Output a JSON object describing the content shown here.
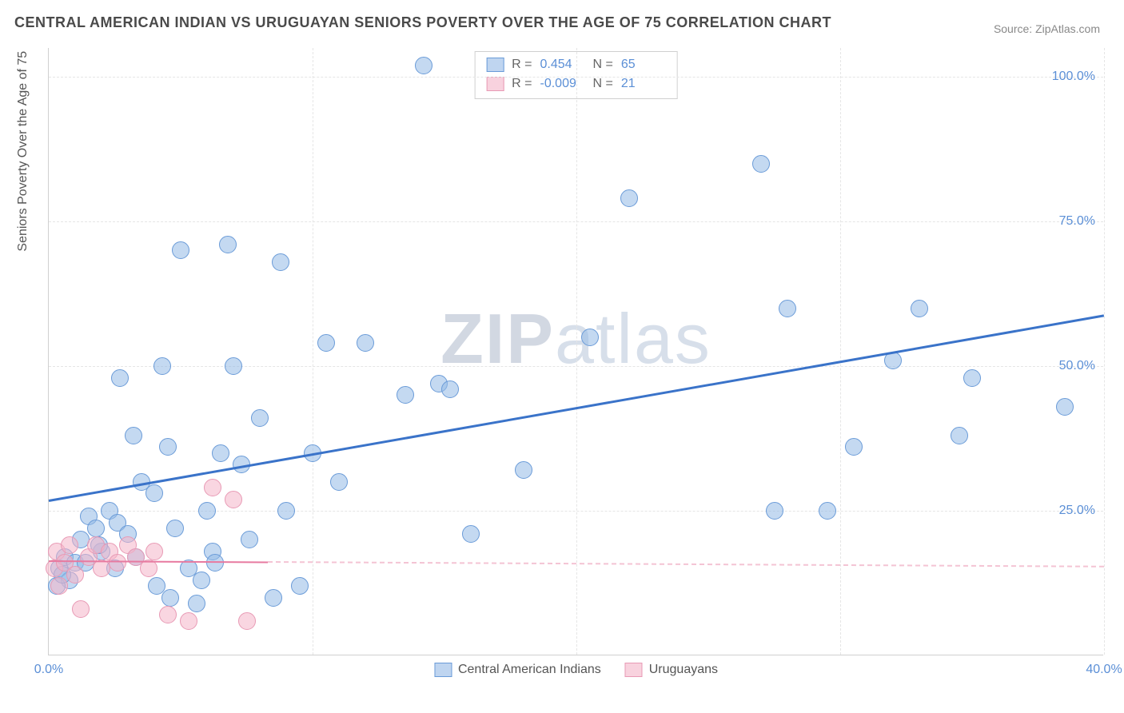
{
  "title": "CENTRAL AMERICAN INDIAN VS URUGUAYAN SENIORS POVERTY OVER THE AGE OF 75 CORRELATION CHART",
  "source_label": "Source: ZipAtlas.com",
  "watermark_zip": "ZIP",
  "watermark_atlas": "atlas",
  "y_axis_title": "Seniors Poverty Over the Age of 75",
  "legend_top": {
    "rows": [
      {
        "swatch": "blue",
        "r_label": "R =",
        "r_value": "0.454",
        "n_label": "N =",
        "n_value": "65"
      },
      {
        "swatch": "pink",
        "r_label": "R =",
        "r_value": "-0.009",
        "n_label": "N =",
        "n_value": "21"
      }
    ]
  },
  "legend_bottom": [
    {
      "swatch": "blue",
      "label": "Central American Indians"
    },
    {
      "swatch": "pink",
      "label": "Uruguayans"
    }
  ],
  "chart": {
    "type": "scatter",
    "xlim": [
      0,
      40
    ],
    "ylim": [
      0,
      105
    ],
    "x_ticks": [
      0,
      10,
      20,
      30,
      40
    ],
    "x_tick_labels": [
      "0.0%",
      "",
      "",
      "",
      "40.0%"
    ],
    "y_ticks": [
      25,
      50,
      75,
      100
    ],
    "y_tick_labels": [
      "25.0%",
      "50.0%",
      "75.0%",
      "100.0%"
    ],
    "grid_color": "#e5e5e5",
    "background_color": "#ffffff",
    "marker_radius": 11,
    "series": [
      {
        "name": "Central American Indians",
        "color_fill": "#94b9e6",
        "color_stroke": "#6a9bd8",
        "class": "blue",
        "points": [
          [
            14.2,
            102
          ],
          [
            0.4,
            15
          ],
          [
            0.6,
            17
          ],
          [
            0.8,
            13
          ],
          [
            1.0,
            16
          ],
          [
            1.2,
            20
          ],
          [
            1.5,
            24
          ],
          [
            1.8,
            22
          ],
          [
            2.0,
            18
          ],
          [
            2.3,
            25
          ],
          [
            2.6,
            23
          ],
          [
            3.0,
            21
          ],
          [
            3.2,
            38
          ],
          [
            3.5,
            30
          ],
          [
            4.0,
            28
          ],
          [
            4.3,
            50
          ],
          [
            4.5,
            36
          ],
          [
            4.8,
            22
          ],
          [
            5.0,
            70
          ],
          [
            5.3,
            15
          ],
          [
            5.6,
            9
          ],
          [
            6.0,
            25
          ],
          [
            6.2,
            18
          ],
          [
            6.5,
            35
          ],
          [
            6.8,
            71
          ],
          [
            7.0,
            50
          ],
          [
            7.3,
            33
          ],
          [
            7.6,
            20
          ],
          [
            8.0,
            41
          ],
          [
            8.5,
            10
          ],
          [
            8.8,
            68
          ],
          [
            9.0,
            25
          ],
          [
            9.5,
            12
          ],
          [
            10.0,
            35
          ],
          [
            10.5,
            54
          ],
          [
            11.0,
            30
          ],
          [
            12.0,
            54
          ],
          [
            13.5,
            45
          ],
          [
            14.8,
            47
          ],
          [
            15.2,
            46
          ],
          [
            16.0,
            21
          ],
          [
            18.0,
            32
          ],
          [
            20.5,
            55
          ],
          [
            22.0,
            79
          ],
          [
            27.0,
            85
          ],
          [
            27.5,
            25
          ],
          [
            28.0,
            60
          ],
          [
            29.5,
            25
          ],
          [
            30.5,
            36
          ],
          [
            32.0,
            51
          ],
          [
            33.0,
            60
          ],
          [
            34.5,
            38
          ],
          [
            35.0,
            48
          ],
          [
            38.5,
            43
          ],
          [
            0.3,
            12
          ],
          [
            0.5,
            14
          ],
          [
            1.4,
            16
          ],
          [
            1.9,
            19
          ],
          [
            2.5,
            15
          ],
          [
            3.3,
            17
          ],
          [
            4.1,
            12
          ],
          [
            4.6,
            10
          ],
          [
            5.8,
            13
          ],
          [
            6.3,
            16
          ],
          [
            2.7,
            48
          ]
        ],
        "trend": {
          "x1": 0,
          "y1": 27,
          "x2": 40,
          "y2": 59,
          "color": "#3a73c9",
          "width": 3
        }
      },
      {
        "name": "Uruguayans",
        "color_fill": "#f4b4c8",
        "color_stroke": "#e89ab5",
        "class": "pink",
        "points": [
          [
            0.2,
            15
          ],
          [
            0.3,
            18
          ],
          [
            0.4,
            12
          ],
          [
            0.6,
            16
          ],
          [
            0.8,
            19
          ],
          [
            1.0,
            14
          ],
          [
            1.2,
            8
          ],
          [
            1.5,
            17
          ],
          [
            1.8,
            19
          ],
          [
            2.0,
            15
          ],
          [
            2.3,
            18
          ],
          [
            2.6,
            16
          ],
          [
            3.0,
            19
          ],
          [
            3.3,
            17
          ],
          [
            3.8,
            15
          ],
          [
            4.0,
            18
          ],
          [
            4.5,
            7
          ],
          [
            5.3,
            6
          ],
          [
            6.2,
            29
          ],
          [
            7.0,
            27
          ],
          [
            7.5,
            6
          ]
        ],
        "trend_solid": {
          "x1": 0,
          "y1": 16.5,
          "x2": 8.3,
          "y2": 16.3,
          "color": "#e77aa0",
          "width": 2
        },
        "trend_dash": {
          "x1": 8.3,
          "y1": 16.3,
          "x2": 40,
          "y2": 15.5,
          "color": "#f4c4d4",
          "width": 2
        }
      }
    ]
  }
}
